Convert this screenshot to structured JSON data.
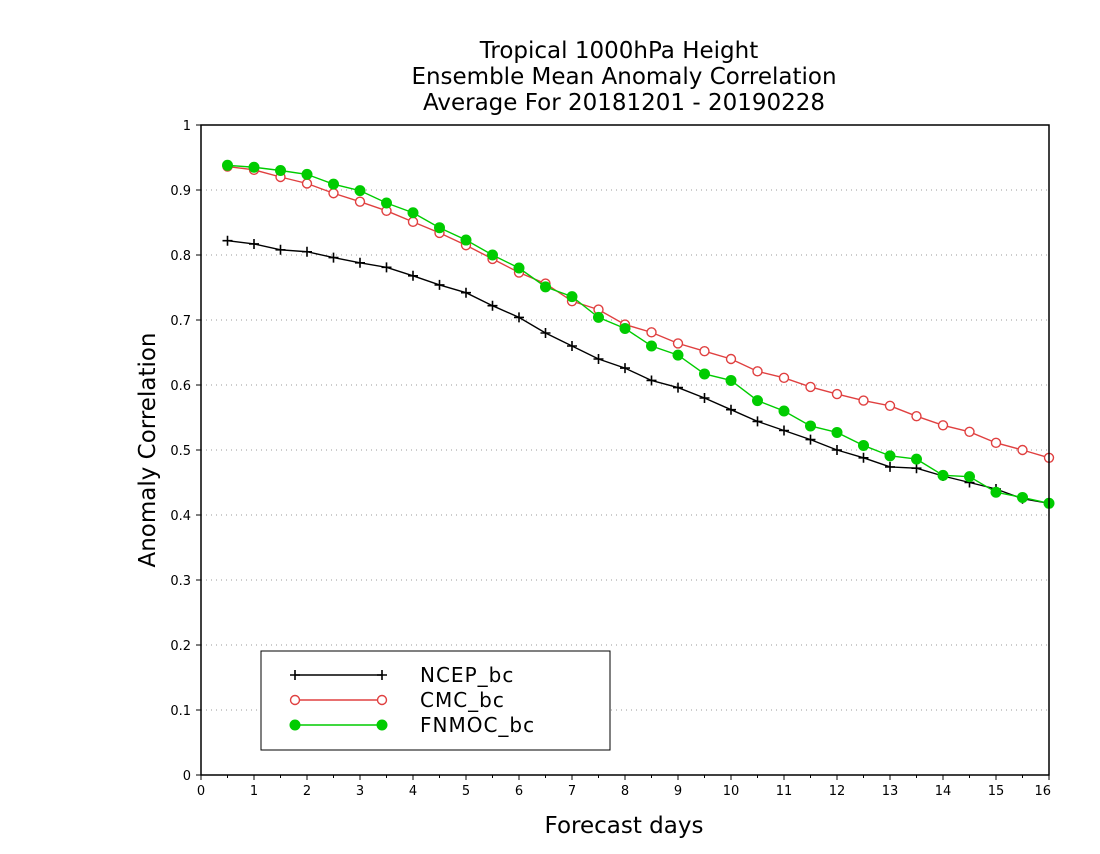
{
  "chart_data": {
    "type": "line",
    "title": [
      "Tropical 1000hPa Height",
      "Ensemble Mean Anomaly Correlation",
      "Average For 20181201 - 20190228"
    ],
    "xlabel": "Forecast days",
    "ylabel": "Anomaly Correlation",
    "xlim": [
      0,
      16
    ],
    "ylim": [
      0,
      1
    ],
    "x_ticks": [
      "0",
      "1",
      "2",
      "3",
      "4",
      "5",
      "6",
      "7",
      "8",
      "9",
      "10",
      "11",
      "12",
      "13",
      "14",
      "15",
      "16"
    ],
    "y_ticks": [
      "0",
      "0.1",
      "0.2",
      "0.3",
      "0.4",
      "0.5",
      "0.6",
      "0.7",
      "0.8",
      "0.9",
      "1"
    ],
    "grid": "horizontal dotted",
    "legend_position": "bottom-left",
    "x": [
      0.5,
      1,
      1.5,
      2,
      2.5,
      3,
      3.5,
      4,
      4.5,
      5,
      5.5,
      6,
      6.5,
      7,
      7.5,
      8,
      8.5,
      9,
      9.5,
      10,
      10.5,
      11,
      11.5,
      12,
      12.5,
      13,
      13.5,
      14,
      14.5,
      15,
      15.5,
      16
    ],
    "series": [
      {
        "name": "NCEP_bc",
        "color": "#000000",
        "marker": "plus",
        "values": [
          0.822,
          0.817,
          0.808,
          0.805,
          0.796,
          0.788,
          0.781,
          0.768,
          0.754,
          0.742,
          0.722,
          0.704,
          0.68,
          0.66,
          0.64,
          0.626,
          0.607,
          0.596,
          0.58,
          0.562,
          0.544,
          0.53,
          0.516,
          0.5,
          0.488,
          0.474,
          0.472,
          0.46,
          0.45,
          0.44,
          0.425,
          0.418
        ]
      },
      {
        "name": "CMC_bc",
        "color": "#e04040",
        "marker": "open-circle",
        "values": [
          0.936,
          0.931,
          0.92,
          0.91,
          0.895,
          0.882,
          0.868,
          0.851,
          0.834,
          0.815,
          0.794,
          0.773,
          0.756,
          0.729,
          0.716,
          0.693,
          0.681,
          0.664,
          0.652,
          0.64,
          0.621,
          0.611,
          0.597,
          0.586,
          0.576,
          0.568,
          0.552,
          0.538,
          0.528,
          0.511,
          0.5,
          0.488
        ]
      },
      {
        "name": "FNMOC_bc",
        "color": "#00cc00",
        "marker": "filled-circle",
        "values": [
          0.938,
          0.935,
          0.93,
          0.924,
          0.909,
          0.899,
          0.88,
          0.865,
          0.842,
          0.823,
          0.8,
          0.78,
          0.751,
          0.736,
          0.704,
          0.687,
          0.66,
          0.646,
          0.617,
          0.607,
          0.576,
          0.56,
          0.537,
          0.527,
          0.507,
          0.491,
          0.486,
          0.461,
          0.459,
          0.435,
          0.427,
          0.418
        ]
      }
    ]
  }
}
